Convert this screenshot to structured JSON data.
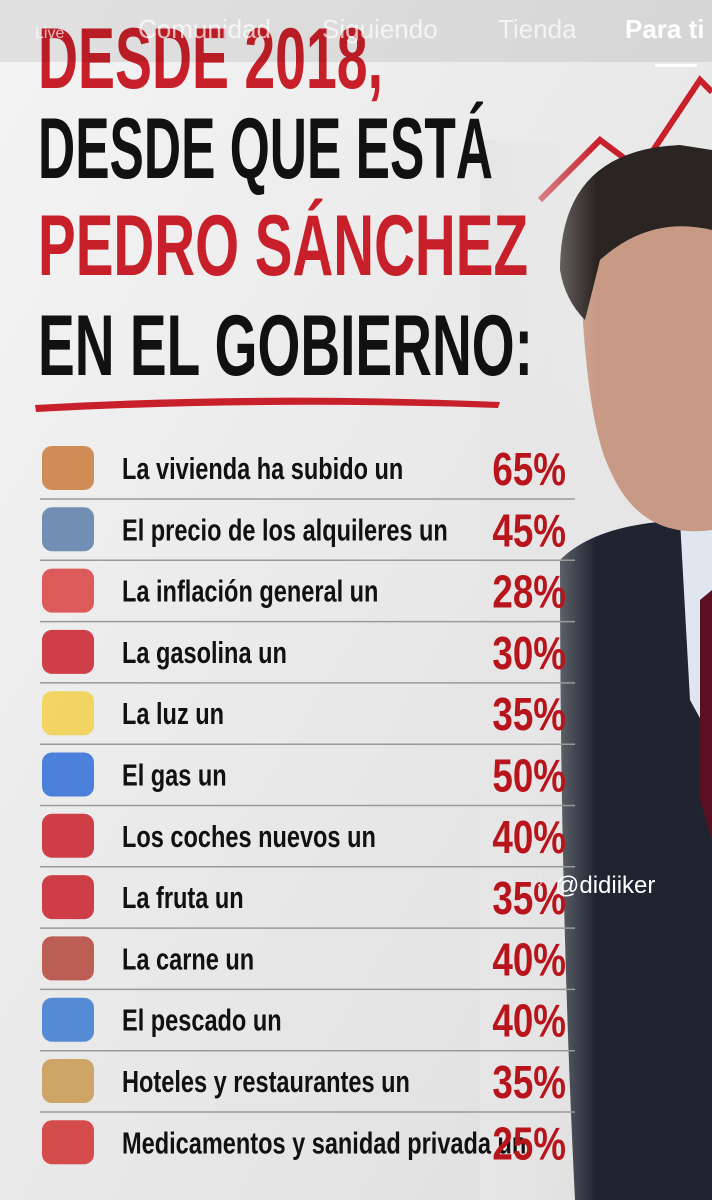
{
  "nav": {
    "tabs": [
      "Live",
      "Comunidad",
      "Siguiendo",
      "Tienda",
      "Para ti"
    ]
  },
  "header": {
    "lines": [
      "DESDE 2018,",
      "DESDE QUE ESTÁ",
      "PEDRO SÁNCHEZ",
      "EN EL GOBIERNO:"
    ]
  },
  "items": [
    {
      "label": "La vivienda ha subido un",
      "value": "65%"
    },
    {
      "label": "El precio de los alquileres un",
      "value": "45%"
    },
    {
      "label": "La inflación general un",
      "value": "28%"
    },
    {
      "label": "La gasolina un",
      "value": "30%"
    },
    {
      "label": "La luz un",
      "value": "35%"
    },
    {
      "label": "El gas un",
      "value": "50%"
    },
    {
      "label": "Los coches nuevos un",
      "value": "40%"
    },
    {
      "label": "La fruta un",
      "value": "35%"
    },
    {
      "label": "La carne un",
      "value": "40%"
    },
    {
      "label": "El pescado un",
      "value": "40%"
    },
    {
      "label": "Hoteles y restaurantes un",
      "value": "35%"
    },
    {
      "label": "Medicamentos y sanidad privada un",
      "value": "25%"
    }
  ],
  "watermark": "@didiiker"
}
